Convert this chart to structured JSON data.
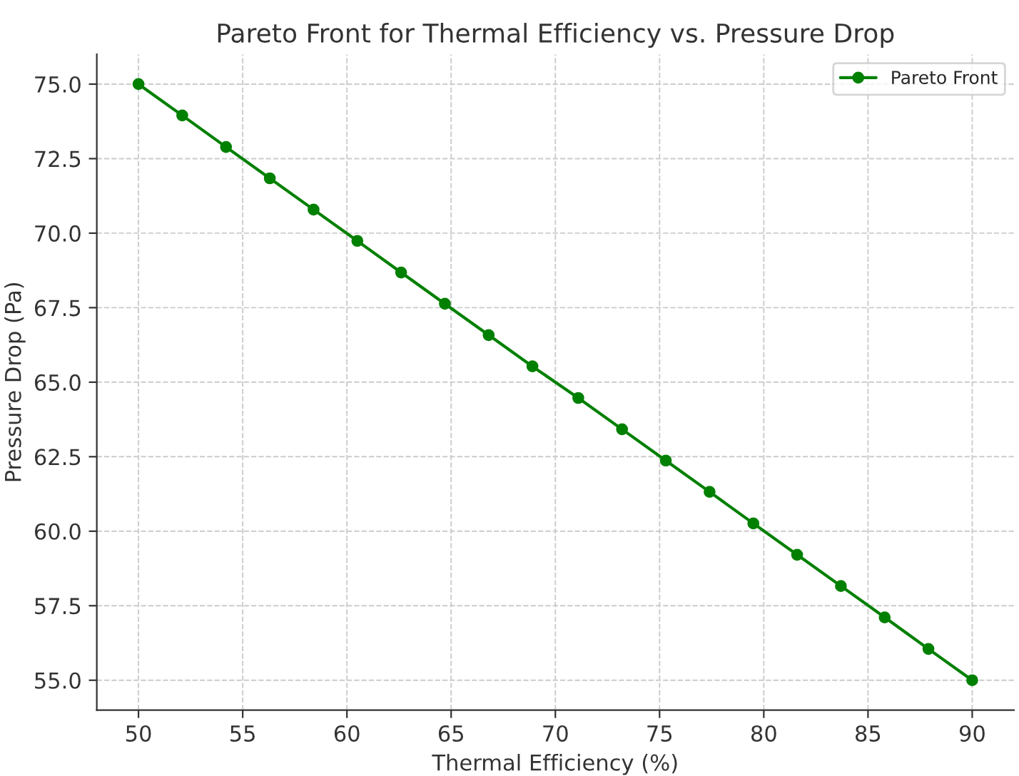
{
  "chart_data": {
    "type": "line",
    "title": "Pareto Front for Thermal Efficiency vs. Pressure Drop",
    "xlabel": "Thermal Efficiency (%)",
    "ylabel": "Pressure Drop (Pa)",
    "series": [
      {
        "name": "Pareto Front",
        "color": "#008000",
        "x": [
          50,
          52.1,
          54.2,
          56.3,
          58.4,
          60.5,
          62.6,
          64.7,
          66.8,
          68.9,
          71.1,
          73.2,
          75.3,
          77.4,
          79.5,
          81.6,
          83.7,
          85.8,
          87.9,
          90
        ],
        "values": [
          75.0,
          73.95,
          72.89,
          71.84,
          70.79,
          69.74,
          68.68,
          67.63,
          66.58,
          65.53,
          64.47,
          63.42,
          62.37,
          61.32,
          60.26,
          59.21,
          58.16,
          57.11,
          56.05,
          55.0
        ]
      }
    ],
    "xlim": [
      48,
      92
    ],
    "ylim": [
      54,
      76
    ],
    "xticks": [
      50,
      55,
      60,
      65,
      70,
      75,
      80,
      85,
      90
    ],
    "yticks": [
      {
        "value": 55,
        "label": "55.0"
      },
      {
        "value": 57.5,
        "label": "57.5"
      },
      {
        "value": 60,
        "label": "60.0"
      },
      {
        "value": 62.5,
        "label": "62.5"
      },
      {
        "value": 65,
        "label": "65.0"
      },
      {
        "value": 67.5,
        "label": "67.5"
      },
      {
        "value": 70,
        "label": "70.0"
      },
      {
        "value": 72.5,
        "label": "72.5"
      },
      {
        "value": 75,
        "label": "75.0"
      }
    ],
    "grid": true,
    "legend": "top right",
    "marker": "circle",
    "line_style": "solid"
  }
}
